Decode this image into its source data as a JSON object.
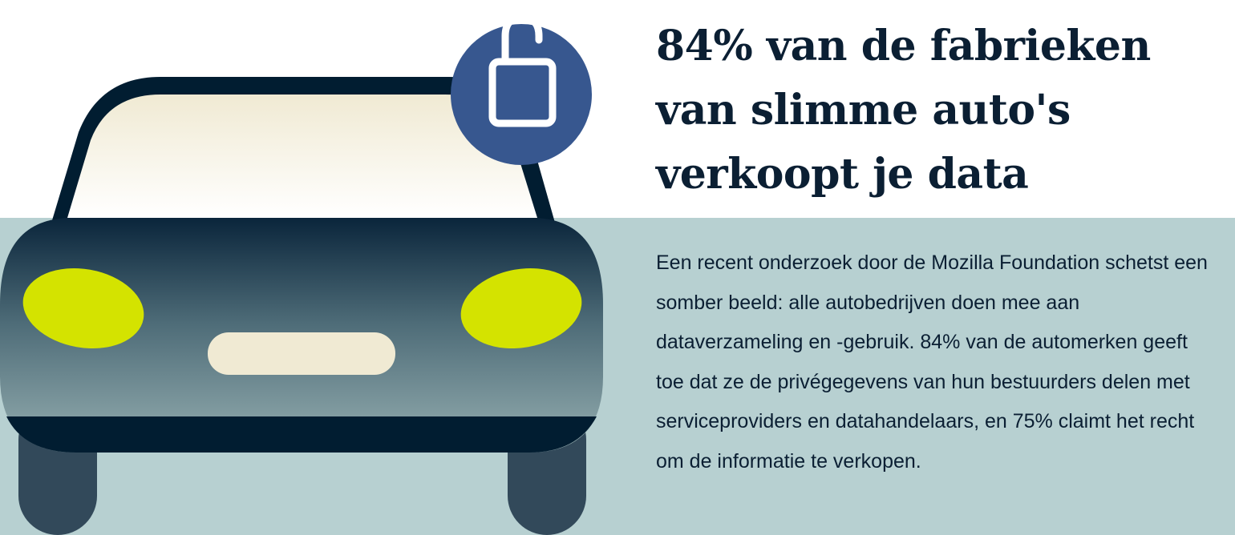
{
  "headline": "84% van de fabrieken van slimme auto's verkoopt je data",
  "body": "Een recent onderzoek door de Mozilla Foundation schetst een somber beeld: alle autobedrijven doen mee aan dataverzameling en -gebruik. 84% van de automerken geeft toe dat ze de privégegevens van hun bestuurders delen met serviceproviders en datahandelaars, en 75% claimt het recht om de informatie te verkopen.",
  "illustration": {
    "subject": "car-front",
    "badge_icon": "unlocked-padlock-icon"
  },
  "colors": {
    "background_panel": "#b7d0d1",
    "dark": "#011d31",
    "headlights": "#d4e300",
    "lock_badge": "#37578f",
    "cream": "#f0ead3"
  }
}
